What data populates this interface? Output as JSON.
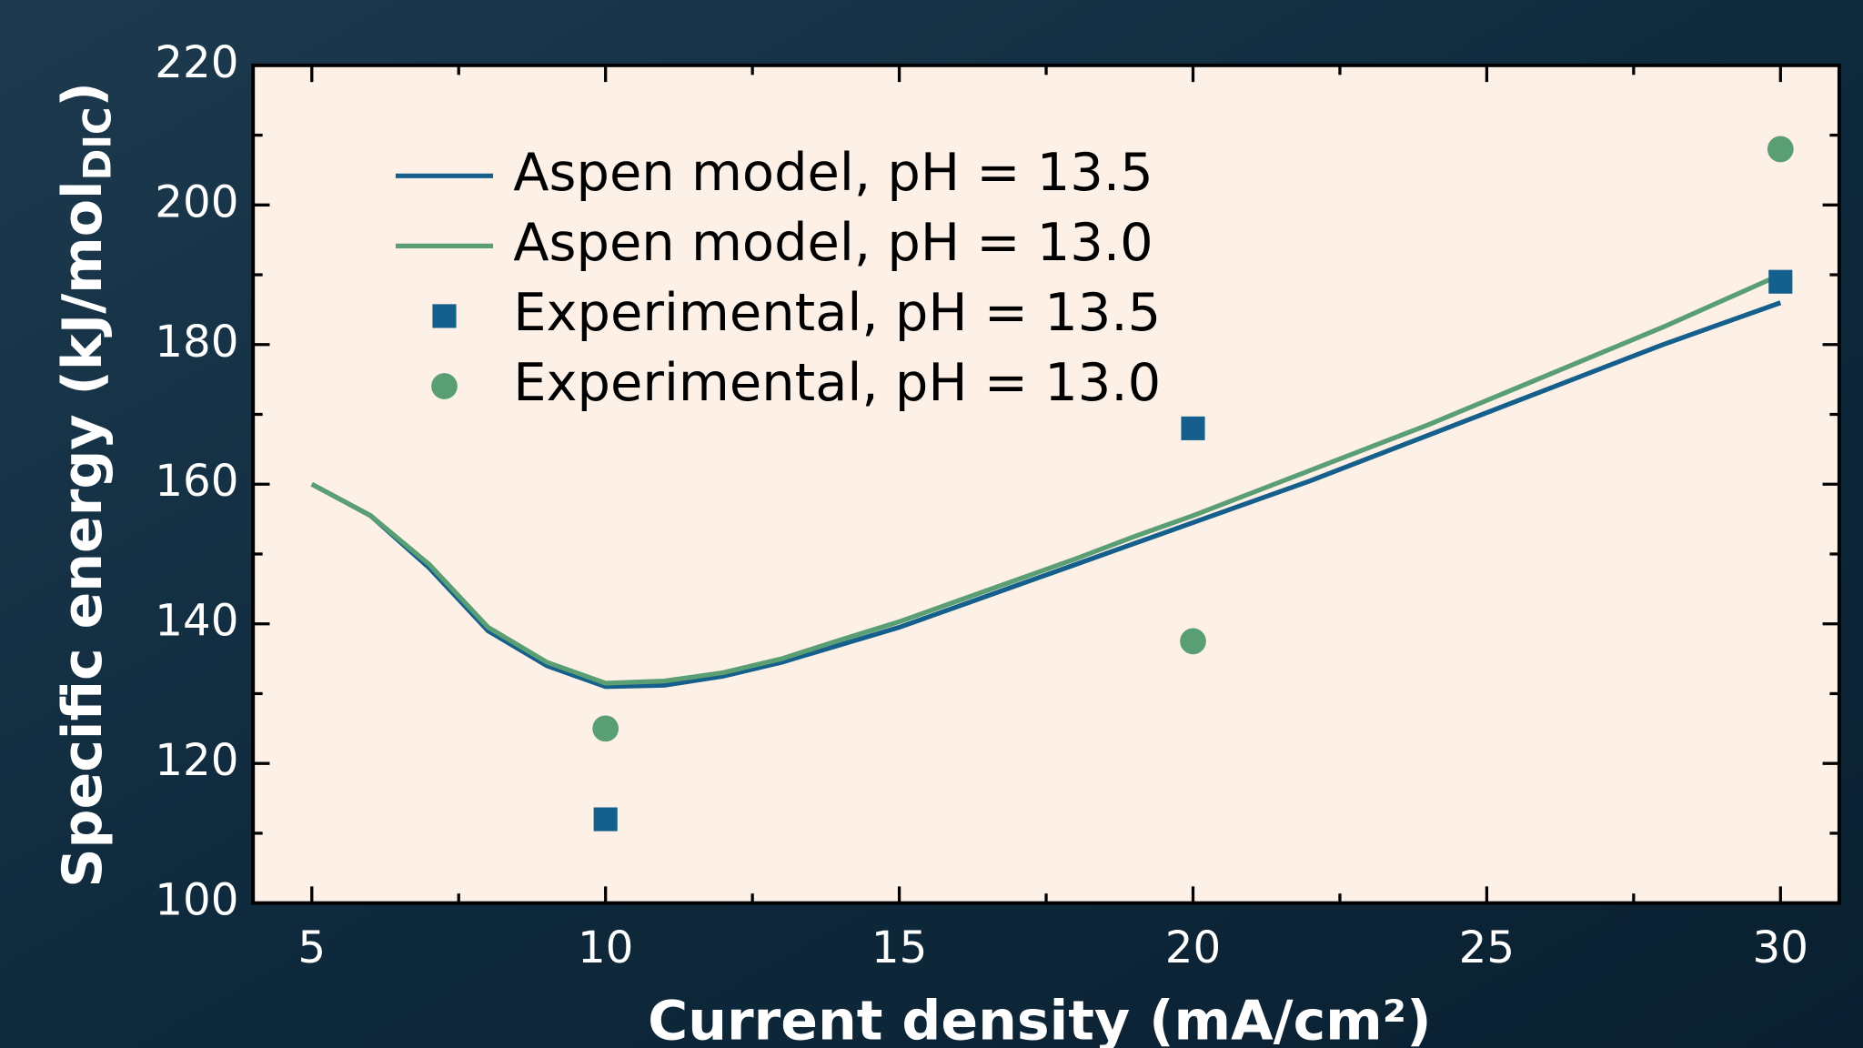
{
  "chart_data": {
    "type": "line",
    "x_label": "Current density (mA/cm²)",
    "y_label": {
      "text": "Specific energy (kJ/mol",
      "subscript": "DIC",
      "suffix": ")"
    },
    "xlim": [
      4,
      31
    ],
    "ylim": [
      100,
      220
    ],
    "xticks": [
      5,
      10,
      15,
      20,
      25,
      30
    ],
    "yticks": [
      100,
      120,
      140,
      160,
      180,
      200,
      220
    ],
    "x_minor_ticks": [
      7.5,
      12.5,
      17.5,
      22.5,
      27.5
    ],
    "y_minor_ticks": [
      110,
      130,
      150,
      170,
      190,
      210
    ],
    "legend": "upper left",
    "series": [
      {
        "name": "Aspen model, pH = 13.5",
        "color": "#155f8c",
        "style": "line",
        "x": [
          5,
          6,
          7,
          8,
          9,
          10,
          11,
          12,
          13,
          14,
          15,
          16,
          17,
          18,
          19,
          20,
          22,
          24,
          26,
          28,
          30
        ],
        "values": [
          160,
          155.5,
          148,
          139,
          134,
          131,
          131.2,
          132.5,
          134.5,
          137,
          139.5,
          142.5,
          145.5,
          148.5,
          151.5,
          154.5,
          160.5,
          167,
          173.5,
          180,
          186
        ]
      },
      {
        "name": "Aspen model, pH = 13.0",
        "color": "#5a9e73",
        "style": "line",
        "x": [
          5,
          6,
          7,
          8,
          9,
          10,
          11,
          12,
          13,
          14,
          15,
          16,
          17,
          18,
          19,
          20,
          22,
          24,
          26,
          28,
          30
        ],
        "values": [
          160,
          155.5,
          148.5,
          139.5,
          134.5,
          131.5,
          131.8,
          133,
          135,
          137.7,
          140.3,
          143.3,
          146.3,
          149.3,
          152.5,
          155.5,
          162,
          168.5,
          175.5,
          182.5,
          190
        ]
      },
      {
        "name": "Experimental, pH = 13.5",
        "color": "#155f8c",
        "style": "marker",
        "marker": "square",
        "x": [
          10,
          20,
          30
        ],
        "values": [
          112,
          168,
          189
        ]
      },
      {
        "name": "Experimental, pH = 13.0",
        "color": "#5a9e73",
        "style": "marker",
        "marker": "circle",
        "x": [
          10,
          20,
          30
        ],
        "values": [
          125,
          137.5,
          208
        ]
      }
    ]
  }
}
